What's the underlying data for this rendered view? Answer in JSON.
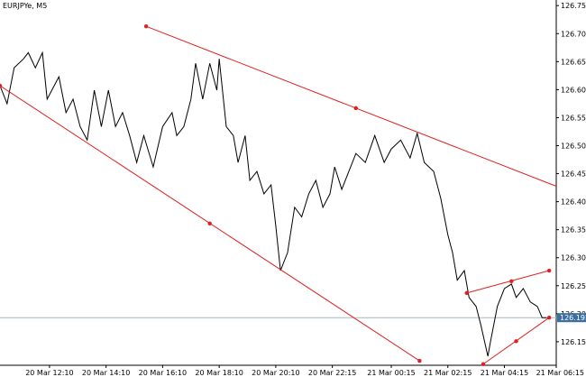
{
  "chart_data": {
    "type": "line",
    "title": "EURJPYe, M5",
    "x": [
      0,
      3,
      6,
      10,
      12,
      15,
      18,
      20,
      23,
      25,
      28,
      31,
      34,
      37,
      40,
      43,
      46,
      49,
      52,
      55,
      58,
      61,
      65,
      69,
      73,
      75,
      78,
      81,
      83,
      86,
      89,
      92,
      93,
      96,
      99,
      101,
      104,
      106,
      109,
      112,
      115,
      117,
      119,
      122,
      125,
      128,
      131,
      134,
      137,
      140,
      142,
      145,
      148,
      151,
      155,
      159,
      163,
      166,
      170,
      174,
      177,
      180,
      184,
      187,
      190,
      192,
      194,
      197,
      199,
      202,
      204,
      207,
      208,
      211,
      214,
      217,
      219,
      222,
      225,
      228,
      230,
      232
    ],
    "series": [
      {
        "color": "#000000",
        "values": [
          126.607,
          126.575,
          126.639,
          126.655,
          126.666,
          126.639,
          126.666,
          126.583,
          126.607,
          126.623,
          126.559,
          126.583,
          126.534,
          126.51,
          126.599,
          126.534,
          126.599,
          126.534,
          126.559,
          126.518,
          126.47,
          126.518,
          126.462,
          126.534,
          126.559,
          126.518,
          126.534,
          126.583,
          126.647,
          126.583,
          126.647,
          126.599,
          126.655,
          126.534,
          126.518,
          126.47,
          126.518,
          126.438,
          126.454,
          126.414,
          126.43,
          126.357,
          126.277,
          126.309,
          126.39,
          126.373,
          126.414,
          126.438,
          126.39,
          126.414,
          126.462,
          126.422,
          126.454,
          126.486,
          126.47,
          126.518,
          126.47,
          126.494,
          126.51,
          126.478,
          126.522,
          126.47,
          126.454,
          126.406,
          126.341,
          126.309,
          126.26,
          126.277,
          126.229,
          126.213,
          126.18,
          126.124,
          126.148,
          126.213,
          126.245,
          126.253,
          126.229,
          126.245,
          126.221,
          126.213,
          126.193,
          126.193
        ]
      }
    ],
    "xlim": [
      0,
      236
    ],
    "ylim": [
      126.108,
      126.76
    ],
    "xticks": [
      {
        "value": 21,
        "label": "20 Mar 12:10"
      },
      {
        "value": 45,
        "label": "20 Mar 14:10"
      },
      {
        "value": 69,
        "label": "20 Mar 16:10"
      },
      {
        "value": 93,
        "label": "20 Mar 18:10"
      },
      {
        "value": 117,
        "label": "20 Mar 20:10"
      },
      {
        "value": 141,
        "label": "20 Mar 22:15"
      },
      {
        "value": 166,
        "label": "21 Mar 00:15"
      },
      {
        "value": 190,
        "label": "21 Mar 02:15"
      },
      {
        "value": 214,
        "label": "21 Mar 04:15"
      },
      {
        "value": 236,
        "label": "21 Mar 06:15"
      }
    ],
    "yticks": [
      {
        "value": 126.15,
        "label": "126.150"
      },
      {
        "value": 126.2,
        "label": "126.200"
      },
      {
        "value": 126.25,
        "label": "126.250"
      },
      {
        "value": 126.3,
        "label": "126.300"
      },
      {
        "value": 126.35,
        "label": "126.350"
      },
      {
        "value": 126.4,
        "label": "126.400"
      },
      {
        "value": 126.45,
        "label": "126.450"
      },
      {
        "value": 126.5,
        "label": "126.500"
      },
      {
        "value": 126.55,
        "label": "126.550"
      },
      {
        "value": 126.6,
        "label": "126.600"
      },
      {
        "value": 126.65,
        "label": "126.650"
      },
      {
        "value": 126.7,
        "label": "126.700"
      },
      {
        "value": 126.75,
        "label": "126.750"
      }
    ],
    "last_price": 126.193,
    "last_price_color": "#3c6e9e",
    "trendline_color": "#e02020",
    "trendlines": [
      {
        "points": [
          [
            62,
            126.713
          ],
          [
            151,
            126.567
          ]
        ],
        "ray": true
      },
      {
        "points": [
          [
            0,
            126.607
          ],
          [
            89,
            126.361
          ],
          [
            178,
            126.116
          ]
        ],
        "ray": false
      },
      {
        "points": [
          [
            198,
            126.237
          ],
          [
            217,
            126.258
          ],
          [
            233,
            126.277
          ]
        ],
        "ray": false
      },
      {
        "points": [
          [
            205,
            126.11
          ],
          [
            219,
            126.151
          ],
          [
            233,
            126.193
          ]
        ],
        "ray": false
      }
    ]
  }
}
